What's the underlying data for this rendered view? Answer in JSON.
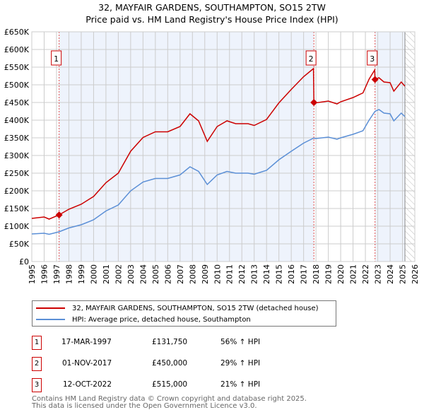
{
  "chart_data": {
    "type": "line",
    "title": "32, MAYFAIR GARDENS, SOUTHAMPTON, SO15 2TW",
    "subtitle": "Price paid vs. HM Land Registry's House Price Index (HPI)",
    "xlim": [
      1995,
      2026
    ],
    "ylim": [
      0,
      650000
    ],
    "grid": true,
    "y_ticks": [
      "£0",
      "£50K",
      "£100K",
      "£150K",
      "£200K",
      "£250K",
      "£300K",
      "£350K",
      "£400K",
      "£450K",
      "£500K",
      "£550K",
      "£600K",
      "£650K"
    ],
    "x_ticks": [
      "1995",
      "1996",
      "1997",
      "1998",
      "1999",
      "2000",
      "2001",
      "2002",
      "2003",
      "2004",
      "2005",
      "2006",
      "2007",
      "2008",
      "2009",
      "2010",
      "2011",
      "2012",
      "2013",
      "2014",
      "2015",
      "2016",
      "2017",
      "2018",
      "2019",
      "2020",
      "2021",
      "2022",
      "2023",
      "2024",
      "2025",
      "2026"
    ],
    "series": [
      {
        "name": "32, MAYFAIR GARDENS, SOUTHAMPTON, SO15 2TW (detached house)",
        "color": "#cc0000",
        "x": [
          1995,
          1996,
          1996.4,
          1997.2,
          1998,
          1999,
          2000,
          2001,
          2002,
          2003,
          2004,
          2005,
          2006,
          2007,
          2007.8,
          2008.5,
          2009.2,
          2010,
          2010.8,
          2011.5,
          2012.5,
          2013,
          2014,
          2015,
          2016,
          2017,
          2017.8,
          2017.83,
          2018,
          2019,
          2019.7,
          2020,
          2021,
          2021.8,
          2022.3,
          2022.75,
          2022.78,
          2023.1,
          2023.5,
          2024,
          2024.3,
          2024.9,
          2025.2
        ],
        "y": [
          122000,
          126000,
          120000,
          131750,
          148000,
          162000,
          184000,
          223000,
          250000,
          312000,
          351000,
          367000,
          367000,
          382000,
          418000,
          398000,
          340000,
          382000,
          398000,
          390000,
          390000,
          385000,
          402000,
          449000,
          487000,
          523000,
          546000,
          450000,
          449000,
          454000,
          446000,
          452000,
          464000,
          477000,
          516000,
          542000,
          515000,
          520000,
          508000,
          506000,
          482000,
          508000,
          496000
        ]
      },
      {
        "name": "HPI: Average price, detached house, Southampton",
        "color": "#5b8fd6",
        "x": [
          1995,
          1996,
          1996.4,
          1997.2,
          1998,
          1999,
          2000,
          2001,
          2002,
          2003,
          2004,
          2005,
          2006,
          2007,
          2007.8,
          2008.5,
          2009.2,
          2010,
          2010.8,
          2011.5,
          2012.5,
          2013,
          2014,
          2015,
          2016,
          2017,
          2017.8,
          2018,
          2019,
          2019.7,
          2020,
          2021,
          2021.8,
          2022.3,
          2022.78,
          2023.1,
          2023.5,
          2024,
          2024.3,
          2024.9,
          2025.2
        ],
        "y": [
          78000,
          80000,
          77000,
          84000,
          95000,
          104000,
          118000,
          143000,
          160000,
          200000,
          225000,
          235000,
          235000,
          245000,
          268000,
          255000,
          218000,
          245000,
          255000,
          250000,
          250000,
          247000,
          258000,
          288000,
          312000,
          335000,
          349000,
          348000,
          352000,
          346000,
          350000,
          360000,
          370000,
          400000,
          425000,
          430000,
          420000,
          418000,
          398000,
          420000,
          410000
        ]
      }
    ],
    "sales": [
      {
        "label": "1",
        "x": 1997.21,
        "y": 131750
      },
      {
        "label": "2",
        "x": 2017.83,
        "y": 450000
      },
      {
        "label": "3",
        "x": 2022.78,
        "y": 515000
      }
    ],
    "shaded_ranges": [
      [
        1997.21,
        2017.83
      ],
      [
        2022.78,
        2025.2
      ]
    ],
    "hatched_from": 2025.2
  },
  "legend": {
    "items": [
      {
        "label": "32, MAYFAIR GARDENS, SOUTHAMPTON, SO15 2TW (detached house)",
        "color": "#cc0000"
      },
      {
        "label": "HPI: Average price, detached house, Southampton",
        "color": "#5b8fd6"
      }
    ]
  },
  "transactions": [
    {
      "num": "1",
      "date": "17-MAR-1997",
      "price": "£131,750",
      "hpi": "56% ↑ HPI"
    },
    {
      "num": "2",
      "date": "01-NOV-2017",
      "price": "£450,000",
      "hpi": "29% ↑ HPI"
    },
    {
      "num": "3",
      "date": "12-OCT-2022",
      "price": "£515,000",
      "hpi": "21% ↑ HPI"
    }
  ],
  "footer": {
    "line1": "Contains HM Land Registry data © Crown copyright and database right 2025.",
    "line2": "This data is licensed under the Open Government Licence v3.0."
  }
}
